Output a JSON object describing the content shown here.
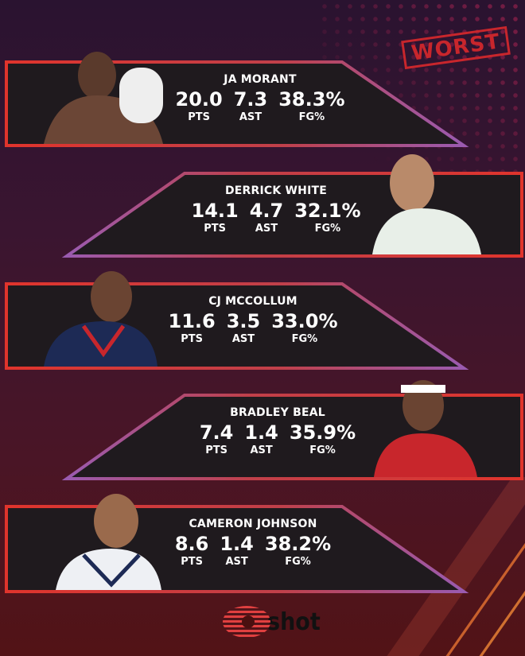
{
  "badge": "WORST",
  "players": [
    {
      "name": "JA MORANT",
      "pts": "20.0",
      "ast": "7.3",
      "fg": "38.3%"
    },
    {
      "name": "DERRICK WHITE",
      "pts": "14.1",
      "ast": "4.7",
      "fg": "32.1%"
    },
    {
      "name": "CJ MCCOLLUM",
      "pts": "11.6",
      "ast": "3.5",
      "fg": "33.0%"
    },
    {
      "name": "BRADLEY BEAL",
      "pts": "7.4",
      "ast": "1.4",
      "fg": "35.9%"
    },
    {
      "name": "CAMERON JOHNSON",
      "pts": "8.6",
      "ast": "1.4",
      "fg": "38.2%"
    }
  ],
  "labels": {
    "pts": "PTS",
    "ast": "AST",
    "fg": "FG%"
  },
  "logo": "shot",
  "colors": {
    "frame_start": "#e0342c",
    "frame_end": "#9a5bb0",
    "panel": "#1f1a1e",
    "stamp": "#c8262c"
  }
}
